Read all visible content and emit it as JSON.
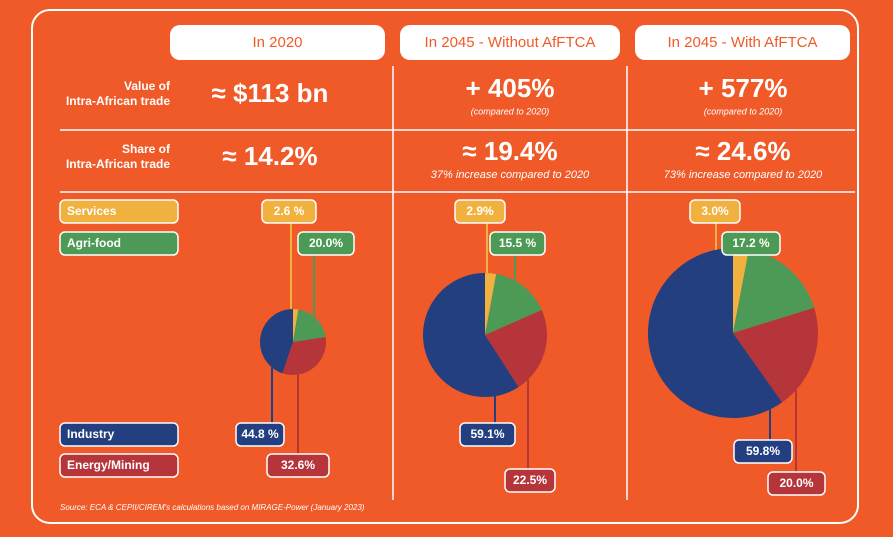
{
  "headers": [
    "In 2020",
    "In 2045 - Without AfFTCA",
    "In 2045 - With AfFTCA"
  ],
  "rows": [
    {
      "label_lines": [
        "Value of",
        "Intra-African trade"
      ],
      "cells": [
        {
          "value": "≈ $113 bn"
        },
        {
          "value": "+ 405%",
          "note": "(compared to 2020)"
        },
        {
          "value": "+ 577%",
          "note": "(compared to 2020)"
        }
      ]
    },
    {
      "label_lines": [
        "Share of",
        "Intra-African trade"
      ],
      "cells": [
        {
          "value": "≈ 14.2%"
        },
        {
          "value": "≈ 19.4%",
          "note": "37% increase compared to 2020"
        },
        {
          "value": "≈ 24.6%",
          "note": "73% increase compared to 2020"
        }
      ]
    }
  ],
  "chart_data": [
    {
      "type": "pie",
      "categories": [
        "Services",
        "Agri-food",
        "Energy/Mining",
        "Industry"
      ],
      "values": [
        2.6,
        20.0,
        32.6,
        44.8
      ],
      "value_labels": [
        "2.6 %",
        "20.0%",
        "32.6%",
        "44.8 %"
      ],
      "colors": [
        "#f0b13e",
        "#4c9a55",
        "#b5353a",
        "#233f80"
      ]
    },
    {
      "type": "pie",
      "categories": [
        "Services",
        "Agri-food",
        "Energy/Mining",
        "Industry"
      ],
      "values": [
        2.9,
        15.5,
        22.5,
        59.1
      ],
      "value_labels": [
        "2.9%",
        "15.5 %",
        "22.5%",
        "59.1%"
      ],
      "colors": [
        "#f0b13e",
        "#4c9a55",
        "#b5353a",
        "#233f80"
      ]
    },
    {
      "type": "pie",
      "categories": [
        "Services",
        "Agri-food",
        "Energy/Mining",
        "Industry"
      ],
      "values": [
        3.0,
        17.2,
        20.0,
        59.8
      ],
      "value_labels": [
        "3.0%",
        "17.2 %",
        "20.0%",
        "59.8%"
      ],
      "colors": [
        "#f0b13e",
        "#4c9a55",
        "#b5353a",
        "#233f80"
      ]
    }
  ],
  "source": "Source: ECA & CEPII/CIREM's calculations based on MIRAGE-Power (January 2023)"
}
